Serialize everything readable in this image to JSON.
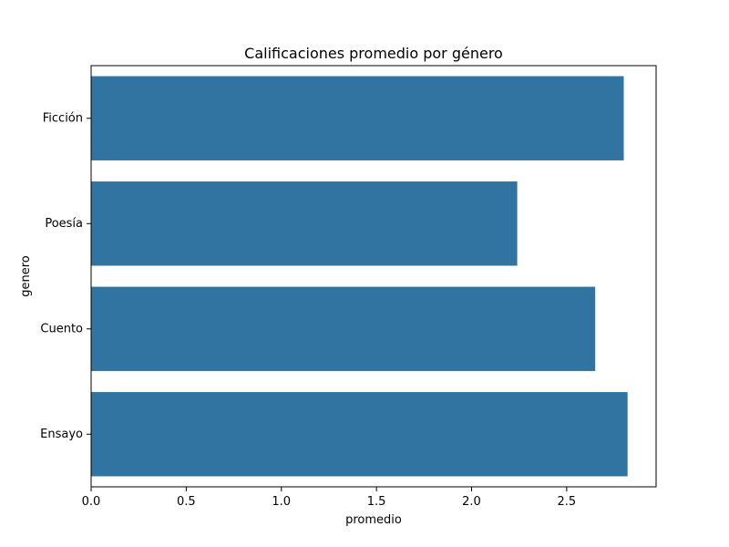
{
  "chart_data": {
    "type": "bar",
    "orientation": "horizontal",
    "title": "Calificaciones promedio por género",
    "xlabel": "promedio",
    "ylabel": "genero",
    "categories": [
      "Ficción",
      "Poesía",
      "Cuento",
      "Ensayo"
    ],
    "values": [
      2.8,
      2.24,
      2.65,
      2.82
    ],
    "xlim": [
      0,
      2.97
    ],
    "xticks": [
      0.0,
      0.5,
      1.0,
      1.5,
      2.0,
      2.5
    ],
    "xtick_labels": [
      "0.0",
      "0.5",
      "1.0",
      "1.5",
      "2.0",
      "2.5"
    ],
    "grid": false,
    "bar_color": "#3274a1"
  }
}
